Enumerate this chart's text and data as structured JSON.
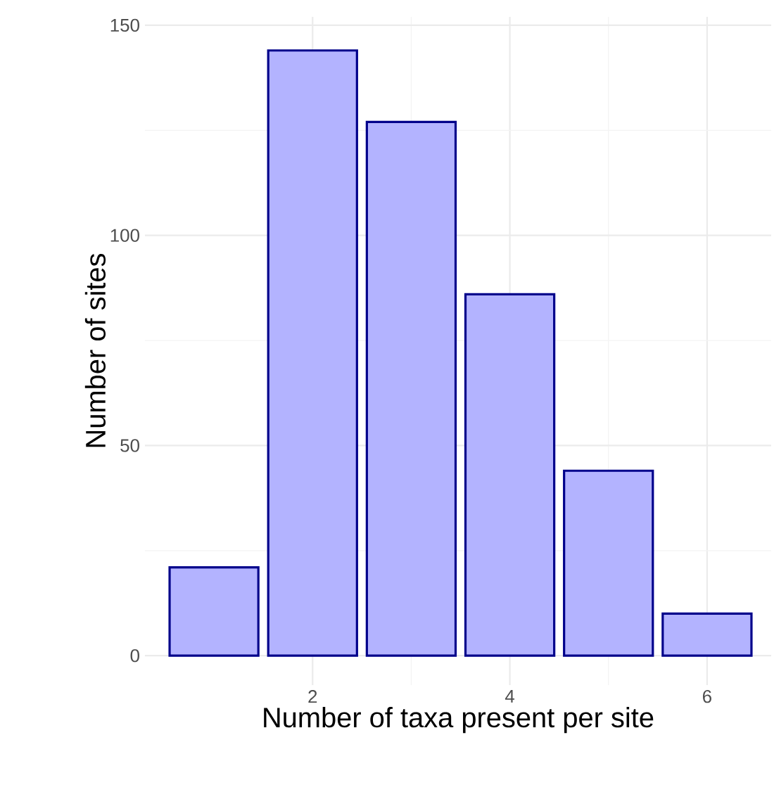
{
  "chart_data": {
    "type": "bar",
    "xlabel": "Number of taxa present per site",
    "ylabel": "Number of sites",
    "x": [
      1,
      2,
      3,
      4,
      5,
      6
    ],
    "values": [
      21,
      144,
      127,
      86,
      44,
      10
    ],
    "color": "#b3b3ff",
    "xlim": [
      0.3,
      6.65
    ],
    "xticks": [
      2,
      4,
      6
    ],
    "ylim": [
      -7,
      152
    ],
    "yticks": [
      0,
      50,
      100,
      150
    ],
    "grid": true
  }
}
